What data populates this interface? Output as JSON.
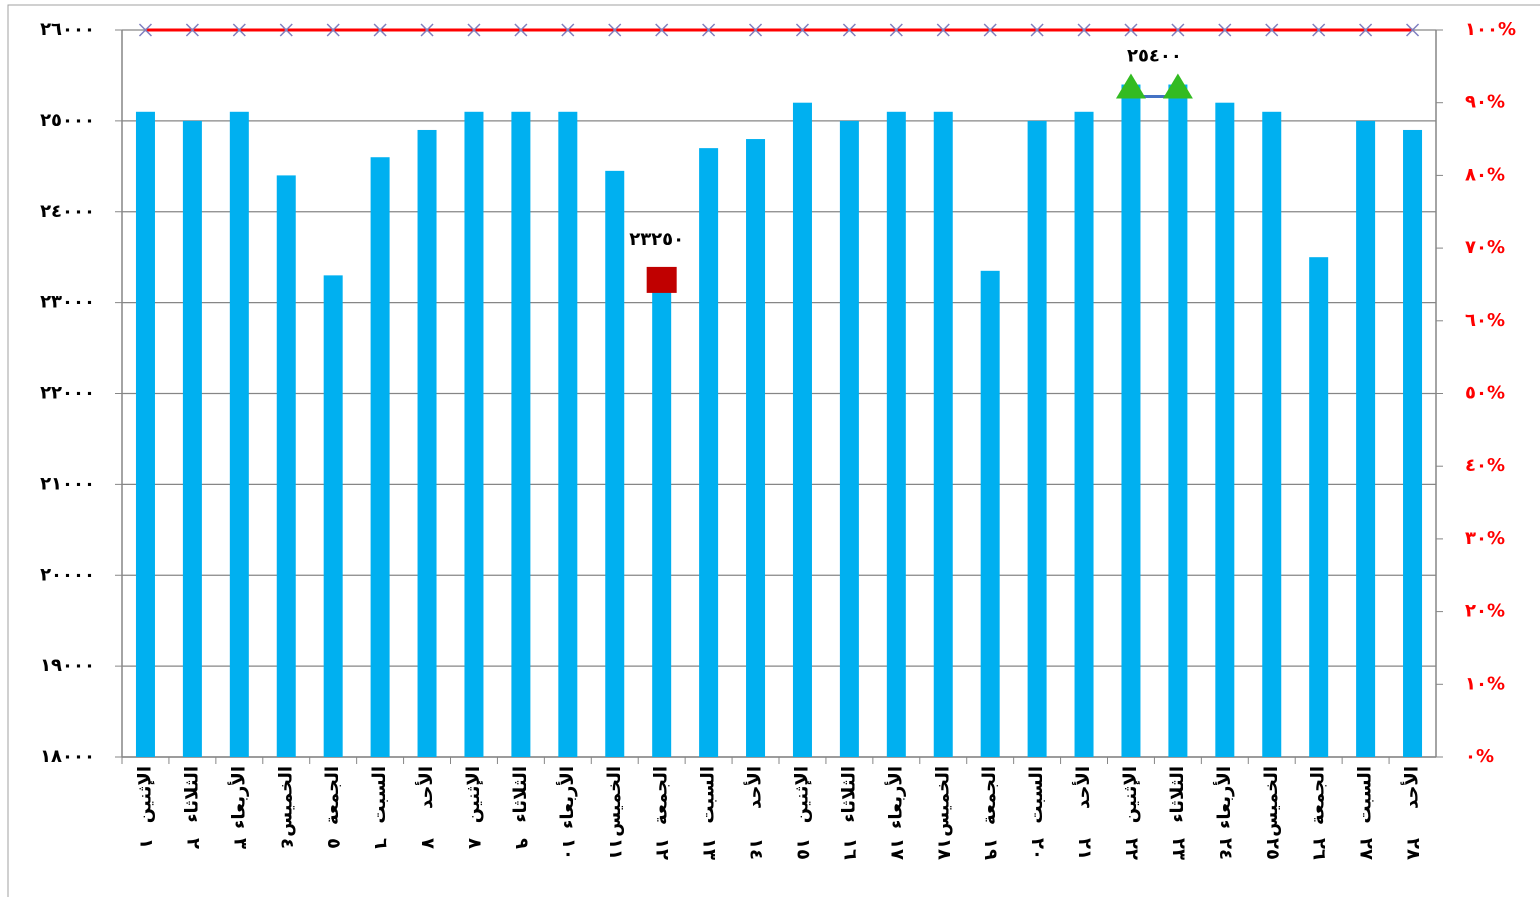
{
  "chart_data": {
    "type": "bar",
    "categories": [
      "الإثنين",
      "الثلاثاء",
      "الأربعاء",
      "الخميس",
      "الجمعة",
      "السبت",
      "الأحد",
      "الإثنين",
      "الثلاثاء",
      "الأربعاء",
      "الخميس",
      "الجمعة",
      "السبت",
      "الأحد",
      "الإثنين",
      "الثلاثاء",
      "الأربعاء",
      "الخميس",
      "الجمعة",
      "السبت",
      "الأحد",
      "الإثنين",
      "الثلاثاء",
      "الأربعاء",
      "الخميس",
      "الجمعة",
      "السبت",
      "الأحد"
    ],
    "category_numbers": [
      "١",
      "٢",
      "٣",
      "٤",
      "٥",
      "٦",
      "٧",
      "٨",
      "٩",
      "١٠",
      "١١",
      "١٢",
      "١٣",
      "١٤",
      "١٥",
      "١٦",
      "١٧",
      "١٨",
      "١٩",
      "٢٠",
      "٢١",
      "٢٢",
      "٢٣",
      "٢٤",
      "٢٥",
      "٢٦",
      "٢٧",
      "٢٨"
    ],
    "series": [
      {
        "type": "bar",
        "color": "#00b0f0",
        "values": [
          25100,
          25000,
          25100,
          24400,
          23300,
          24600,
          24900,
          25100,
          25100,
          25100,
          24450,
          23250,
          24700,
          24800,
          25200,
          25000,
          25100,
          25100,
          23350,
          25000,
          25100,
          25400,
          25400,
          25200,
          25100,
          23500,
          25000,
          24900
        ]
      },
      {
        "type": "line",
        "axis": "y2",
        "color": "#ff0000",
        "marker_color": "#7f7fbf",
        "values": [
          100,
          100,
          100,
          100,
          100,
          100,
          100,
          100,
          100,
          100,
          100,
          100,
          100,
          100,
          100,
          100,
          100,
          100,
          100,
          100,
          100,
          100,
          100,
          100,
          100,
          100,
          100,
          100
        ]
      },
      {
        "type": "max",
        "color": "#33bb22",
        "line_color": "#4472c4",
        "label": "٢٥٤٠٠",
        "values": [
          null,
          null,
          null,
          null,
          null,
          null,
          null,
          null,
          null,
          null,
          null,
          null,
          null,
          null,
          null,
          null,
          null,
          null,
          null,
          null,
          null,
          25400,
          25400,
          null,
          null,
          null,
          null,
          null
        ]
      },
      {
        "type": "min",
        "color": "#c00000",
        "label": "٢٣٢٥٠",
        "values": [
          null,
          null,
          null,
          null,
          null,
          null,
          null,
          null,
          null,
          null,
          null,
          23250,
          null,
          null,
          null,
          null,
          null,
          null,
          null,
          null,
          null,
          null,
          null,
          null,
          null,
          null,
          null,
          null
        ]
      }
    ],
    "ylim": [
      18000,
      26000
    ],
    "yticks": [
      {
        "value": 18000,
        "label": "١٨٠٠٠"
      },
      {
        "value": 19000,
        "label": "١٩٠٠٠"
      },
      {
        "value": 20000,
        "label": "٢٠٠٠٠"
      },
      {
        "value": 21000,
        "label": "٢١٠٠٠"
      },
      {
        "value": 22000,
        "label": "٢٢٠٠٠"
      },
      {
        "value": 23000,
        "label": "٢٣٠٠٠"
      },
      {
        "value": 24000,
        "label": "٢٤٠٠٠"
      },
      {
        "value": 25000,
        "label": "٢٥٠٠٠"
      },
      {
        "value": 26000,
        "label": "٢٦٠٠٠"
      }
    ],
    "y2lim": [
      0,
      100
    ],
    "y2ticks": [
      {
        "value": 0,
        "label": "٠%"
      },
      {
        "value": 10,
        "label": "١٠%"
      },
      {
        "value": 20,
        "label": "٢٠%"
      },
      {
        "value": 30,
        "label": "٣٠%"
      },
      {
        "value": 40,
        "label": "٤٠%"
      },
      {
        "value": 50,
        "label": "٥٠%"
      },
      {
        "value": 60,
        "label": "٦٠%"
      },
      {
        "value": 70,
        "label": "٧٠%"
      },
      {
        "value": 80,
        "label": "٨٠%"
      },
      {
        "value": 90,
        "label": "٩٠%"
      },
      {
        "value": 100,
        "label": "١٠٠%"
      }
    ],
    "y2color": "#ff0000",
    "grid": true
  }
}
